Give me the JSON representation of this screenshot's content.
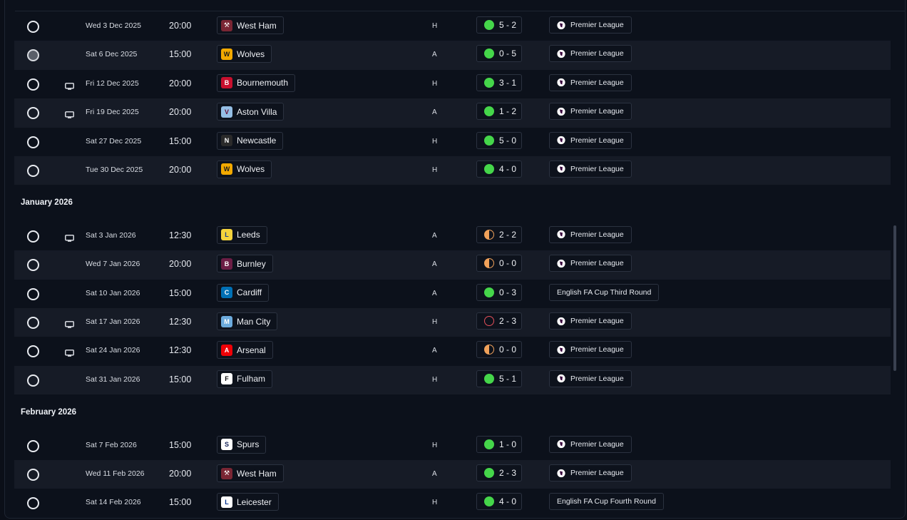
{
  "colors": {
    "win": "#45d64a",
    "draw": "#f0a15a",
    "loss": "#e5505a",
    "row_alt": "#161b26",
    "background": "#0c111b"
  },
  "months": [
    {
      "label": "",
      "fixtures": [
        {
          "date": "Wed 3 Dec 2025",
          "time": "20:00",
          "tv": false,
          "opponent": "West Ham",
          "crest": "west-ham",
          "venue": "H",
          "outcome": "win",
          "score": "5 - 2",
          "competition": "Premier League",
          "comp_icon": true,
          "radio": "empty"
        },
        {
          "date": "Sat 6 Dec 2025",
          "time": "15:00",
          "tv": false,
          "opponent": "Wolves",
          "crest": "wolves",
          "venue": "A",
          "outcome": "win",
          "score": "0 - 5",
          "competition": "Premier League",
          "comp_icon": true,
          "radio": "filled"
        },
        {
          "date": "Fri 12 Dec 2025",
          "time": "20:00",
          "tv": true,
          "opponent": "Bournemouth",
          "crest": "bournemouth",
          "venue": "H",
          "outcome": "win",
          "score": "3 - 1",
          "competition": "Premier League",
          "comp_icon": true,
          "radio": "empty"
        },
        {
          "date": "Fri 19 Dec 2025",
          "time": "20:00",
          "tv": true,
          "opponent": "Aston Villa",
          "crest": "aston-villa",
          "venue": "A",
          "outcome": "win",
          "score": "1 - 2",
          "competition": "Premier League",
          "comp_icon": true,
          "radio": "empty"
        },
        {
          "date": "Sat 27 Dec 2025",
          "time": "15:00",
          "tv": false,
          "opponent": "Newcastle",
          "crest": "newcastle",
          "venue": "H",
          "outcome": "win",
          "score": "5 - 0",
          "competition": "Premier League",
          "comp_icon": true,
          "radio": "empty"
        },
        {
          "date": "Tue 30 Dec 2025",
          "time": "20:00",
          "tv": false,
          "opponent": "Wolves",
          "crest": "wolves",
          "venue": "H",
          "outcome": "win",
          "score": "4 - 0",
          "competition": "Premier League",
          "comp_icon": true,
          "radio": "empty"
        }
      ]
    },
    {
      "label": "January 2026",
      "fixtures": [
        {
          "date": "Sat 3 Jan 2026",
          "time": "12:30",
          "tv": true,
          "opponent": "Leeds",
          "crest": "leeds",
          "venue": "A",
          "outcome": "draw",
          "score": "2 - 2",
          "competition": "Premier League",
          "comp_icon": true,
          "radio": "empty"
        },
        {
          "date": "Wed 7 Jan 2026",
          "time": "20:00",
          "tv": false,
          "opponent": "Burnley",
          "crest": "burnley",
          "venue": "A",
          "outcome": "draw",
          "score": "0 - 0",
          "competition": "Premier League",
          "comp_icon": true,
          "radio": "empty"
        },
        {
          "date": "Sat 10 Jan 2026",
          "time": "15:00",
          "tv": false,
          "opponent": "Cardiff",
          "crest": "cardiff",
          "venue": "A",
          "outcome": "win",
          "score": "0 - 3",
          "competition": "English FA Cup Third Round",
          "comp_icon": false,
          "radio": "empty"
        },
        {
          "date": "Sat 17 Jan 2026",
          "time": "12:30",
          "tv": true,
          "opponent": "Man City",
          "crest": "man-city",
          "venue": "H",
          "outcome": "loss",
          "score": "2 - 3",
          "competition": "Premier League",
          "comp_icon": true,
          "radio": "empty"
        },
        {
          "date": "Sat 24 Jan 2026",
          "time": "12:30",
          "tv": true,
          "opponent": "Arsenal",
          "crest": "arsenal",
          "venue": "A",
          "outcome": "draw",
          "score": "0 - 0",
          "competition": "Premier League",
          "comp_icon": true,
          "radio": "empty"
        },
        {
          "date": "Sat 31 Jan 2026",
          "time": "15:00",
          "tv": false,
          "opponent": "Fulham",
          "crest": "fulham",
          "venue": "H",
          "outcome": "win",
          "score": "5 - 1",
          "competition": "Premier League",
          "comp_icon": true,
          "radio": "empty"
        }
      ]
    },
    {
      "label": "February 2026",
      "fixtures": [
        {
          "date": "Sat 7 Feb 2026",
          "time": "15:00",
          "tv": false,
          "opponent": "Spurs",
          "crest": "spurs",
          "venue": "H",
          "outcome": "win",
          "score": "1 - 0",
          "competition": "Premier League",
          "comp_icon": true,
          "radio": "empty"
        },
        {
          "date": "Wed 11 Feb 2026",
          "time": "20:00",
          "tv": false,
          "opponent": "West Ham",
          "crest": "west-ham",
          "venue": "A",
          "outcome": "win",
          "score": "2 - 3",
          "competition": "Premier League",
          "comp_icon": true,
          "radio": "empty"
        },
        {
          "date": "Sat 14 Feb 2026",
          "time": "15:00",
          "tv": false,
          "opponent": "Leicester",
          "crest": "leicester",
          "venue": "H",
          "outcome": "win",
          "score": "4 - 0",
          "competition": "English FA Cup Fourth Round",
          "comp_icon": false,
          "radio": "empty"
        }
      ]
    }
  ]
}
